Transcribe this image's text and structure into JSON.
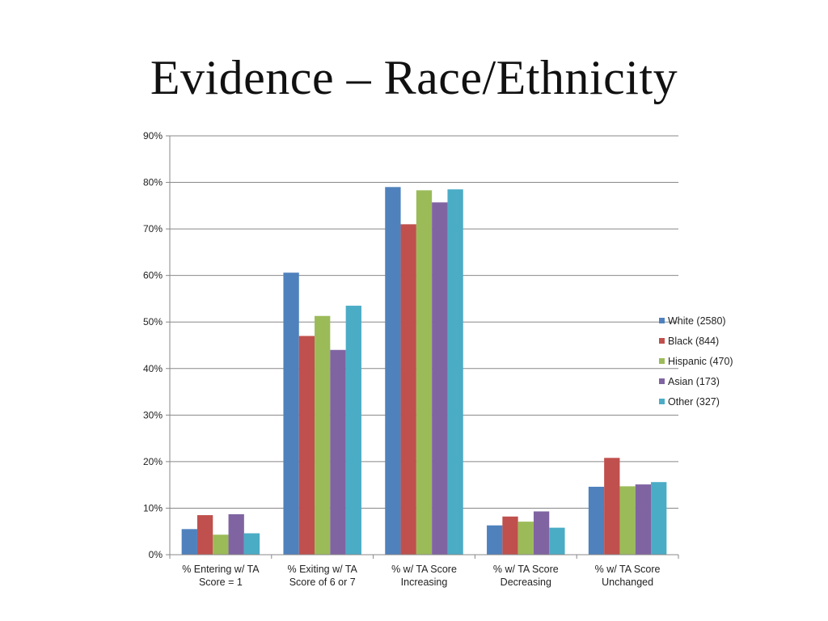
{
  "slide": {
    "title": "Evidence – Race/Ethnicity"
  },
  "chart_data": {
    "type": "bar",
    "categories": [
      [
        "% Entering w/ TA",
        "Score = 1"
      ],
      [
        "% Exiting w/ TA",
        "Score of 6 or 7"
      ],
      [
        "% w/ TA Score",
        "Increasing"
      ],
      [
        "% w/ TA Score",
        "Decreasing"
      ],
      [
        "% w/ TA Score",
        "Unchanged"
      ]
    ],
    "series": [
      {
        "name": "White (2580)",
        "color": "#4f81bd",
        "values": [
          5.5,
          60.6,
          79.0,
          6.3,
          14.6
        ]
      },
      {
        "name": "Black (844)",
        "color": "#c0504d",
        "values": [
          8.5,
          47.0,
          71.0,
          8.2,
          20.8
        ]
      },
      {
        "name": "Hispanic (470)",
        "color": "#9bbb59",
        "values": [
          4.3,
          51.3,
          78.3,
          7.1,
          14.7
        ]
      },
      {
        "name": "Asian (173)",
        "color": "#8064a2",
        "values": [
          8.7,
          44.0,
          75.7,
          9.3,
          15.1
        ]
      },
      {
        "name": "Other (327)",
        "color": "#4bacc6",
        "values": [
          4.6,
          53.5,
          78.5,
          5.8,
          15.6
        ]
      }
    ],
    "ylim": [
      0,
      90
    ],
    "yticks": [
      "0%",
      "10%",
      "20%",
      "30%",
      "40%",
      "50%",
      "60%",
      "70%",
      "80%",
      "90%"
    ],
    "grid": true,
    "legend": "right",
    "xlabel": "",
    "ylabel": ""
  }
}
